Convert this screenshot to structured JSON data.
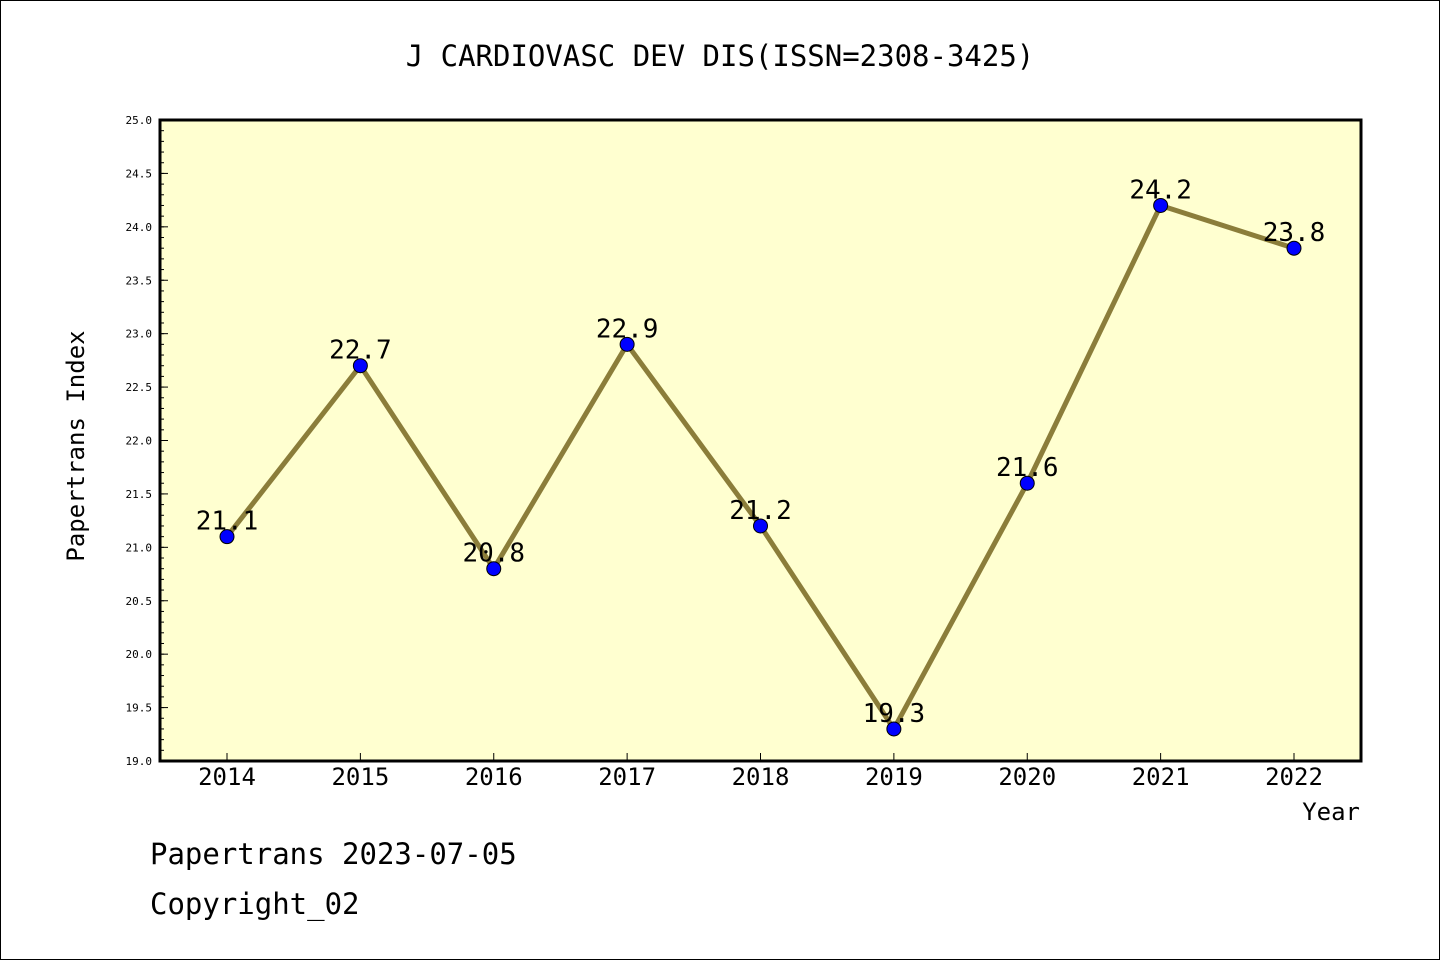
{
  "chart_data": {
    "type": "line",
    "title": "J CARDIOVASC DEV DIS(ISSN=2308-3425)",
    "xlabel": "Year",
    "ylabel": "Papertrans Index",
    "categories": [
      "2014",
      "2015",
      "2016",
      "2017",
      "2018",
      "2019",
      "2020",
      "2021",
      "2022"
    ],
    "series": [
      {
        "values": [
          21.1,
          22.7,
          20.8,
          22.9,
          21.2,
          19.3,
          21.6,
          24.2,
          23.8
        ],
        "data_labels": [
          "21.1",
          "22.7",
          "20.8",
          "22.9",
          "21.2",
          "19.3",
          "21.6",
          "24.2",
          "23.8"
        ],
        "line_color": "#8b7d3a",
        "marker_color": "#0000ff"
      }
    ],
    "ylim": [
      19.0,
      25.0
    ],
    "y_ticks": [
      "19.0",
      "19.5",
      "20.0",
      "20.5",
      "21.0",
      "21.5",
      "22.0",
      "22.5",
      "23.0",
      "23.5",
      "24.0",
      "24.5",
      "25.0"
    ],
    "grid": false,
    "plot_background": "#ffffd0"
  },
  "footer": {
    "line1": "Papertrans 2023-07-05",
    "line2": "Copyright_02"
  }
}
